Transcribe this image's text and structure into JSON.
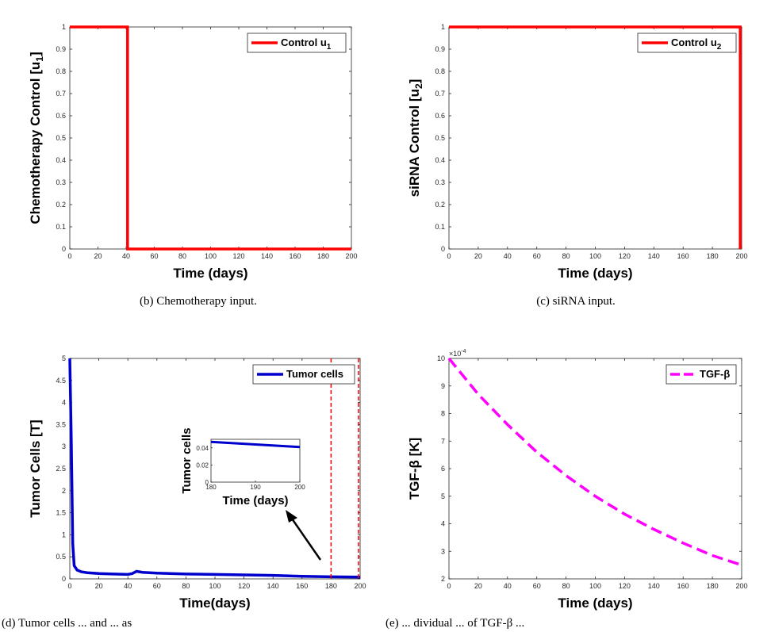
{
  "chart_data": [
    {
      "id": "chemo",
      "type": "line",
      "xlabel": "Time (days)",
      "ylabel": "Chemotherapy Control [u",
      "ylabel_sub": "1",
      "ylabel_end": "]",
      "xlim": [
        0,
        200
      ],
      "ylim": [
        0,
        1
      ],
      "xticks": [
        0,
        20,
        40,
        60,
        80,
        100,
        120,
        140,
        160,
        180,
        200
      ],
      "yticks": [
        0,
        0.1,
        0.2,
        0.3,
        0.4,
        0.5,
        0.6,
        0.7,
        0.8,
        0.9,
        1
      ],
      "legend": {
        "label": "Control u",
        "sub": "1",
        "placement": "top-right"
      },
      "series": [
        {
          "name": "Control u1",
          "color": "#ff0000",
          "style": "solid",
          "x": [
            0,
            41,
            41,
            200
          ],
          "y": [
            1,
            1,
            0,
            0
          ]
        }
      ],
      "caption": "(b) Chemotherapy input."
    },
    {
      "id": "sirna",
      "type": "line",
      "xlabel": "Time (days)",
      "ylabel": "siRNA Control [u",
      "ylabel_sub": "2",
      "ylabel_end": "]",
      "xlim": [
        0,
        200
      ],
      "ylim": [
        0,
        1
      ],
      "xticks": [
        0,
        20,
        40,
        60,
        80,
        100,
        120,
        140,
        160,
        180,
        200
      ],
      "yticks": [
        0,
        0.1,
        0.2,
        0.3,
        0.4,
        0.5,
        0.6,
        0.7,
        0.8,
        0.9,
        1
      ],
      "legend": {
        "label": "Control u",
        "sub": "2",
        "placement": "top-right"
      },
      "series": [
        {
          "name": "Control u2",
          "color": "#ff0000",
          "style": "solid",
          "x": [
            0,
            199,
            199
          ],
          "y": [
            1,
            1,
            0
          ]
        }
      ],
      "caption": "(c) siRNA input."
    },
    {
      "id": "tumor",
      "type": "line",
      "xlabel": "Time(days)",
      "ylabel": "Tumor Cells [T]",
      "xlim": [
        0,
        200
      ],
      "ylim": [
        0,
        5
      ],
      "xticks": [
        0,
        20,
        40,
        60,
        80,
        100,
        120,
        140,
        160,
        180,
        200
      ],
      "yticks": [
        0,
        0.5,
        1,
        1.5,
        2,
        2.5,
        3,
        3.5,
        4,
        4.5,
        5
      ],
      "legend": {
        "label": "Tumor cells",
        "placement": "top-right"
      },
      "series": [
        {
          "name": "Tumor cells",
          "color": "#0000cd",
          "style": "solid",
          "x": [
            0,
            1,
            2,
            3,
            5,
            8,
            12,
            20,
            30,
            40,
            43,
            46,
            50,
            60,
            80,
            100,
            120,
            140,
            160,
            180,
            200
          ],
          "y": [
            5.0,
            3.2,
            0.8,
            0.3,
            0.2,
            0.16,
            0.14,
            0.12,
            0.11,
            0.1,
            0.12,
            0.17,
            0.15,
            0.13,
            0.11,
            0.1,
            0.09,
            0.08,
            0.06,
            0.047,
            0.04
          ]
        }
      ],
      "zoom_box": {
        "x": [
          180,
          200
        ],
        "color": "#ff0000"
      },
      "inset": {
        "xlabel": "Time (days)",
        "ylabel": "Tumor cells",
        "xlim": [
          180,
          200
        ],
        "ylim": [
          0,
          0.05
        ],
        "xticks": [
          180,
          190,
          200
        ],
        "yticks": [
          0,
          0.02,
          0.04
        ],
        "series": {
          "x": [
            180,
            200
          ],
          "y": [
            0.047,
            0.041
          ]
        }
      },
      "caption": "(d) Tumor cells ... and ... as"
    },
    {
      "id": "tgf",
      "type": "line",
      "xlabel": "Time (days)",
      "ylabel": "TGF-β [K]",
      "exponent": "×10",
      "exponent_pow": "-4",
      "xlim": [
        0,
        200
      ],
      "ylim": [
        2,
        10
      ],
      "xticks": [
        0,
        20,
        40,
        60,
        80,
        100,
        120,
        140,
        160,
        180,
        200
      ],
      "yticks": [
        2,
        3,
        4,
        5,
        6,
        7,
        8,
        9,
        10
      ],
      "legend": {
        "label": "TGF-β",
        "placement": "top-right"
      },
      "series": [
        {
          "name": "TGF-β",
          "color": "#ff00ff",
          "style": "dashed",
          "x": [
            0,
            20,
            40,
            60,
            80,
            100,
            120,
            140,
            160,
            180,
            200
          ],
          "y": [
            10.0,
            8.7,
            7.6,
            6.6,
            5.75,
            5.0,
            4.35,
            3.8,
            3.3,
            2.85,
            2.5
          ]
        }
      ],
      "caption": "(e) ... dividual ... of TGF-β ..."
    }
  ]
}
